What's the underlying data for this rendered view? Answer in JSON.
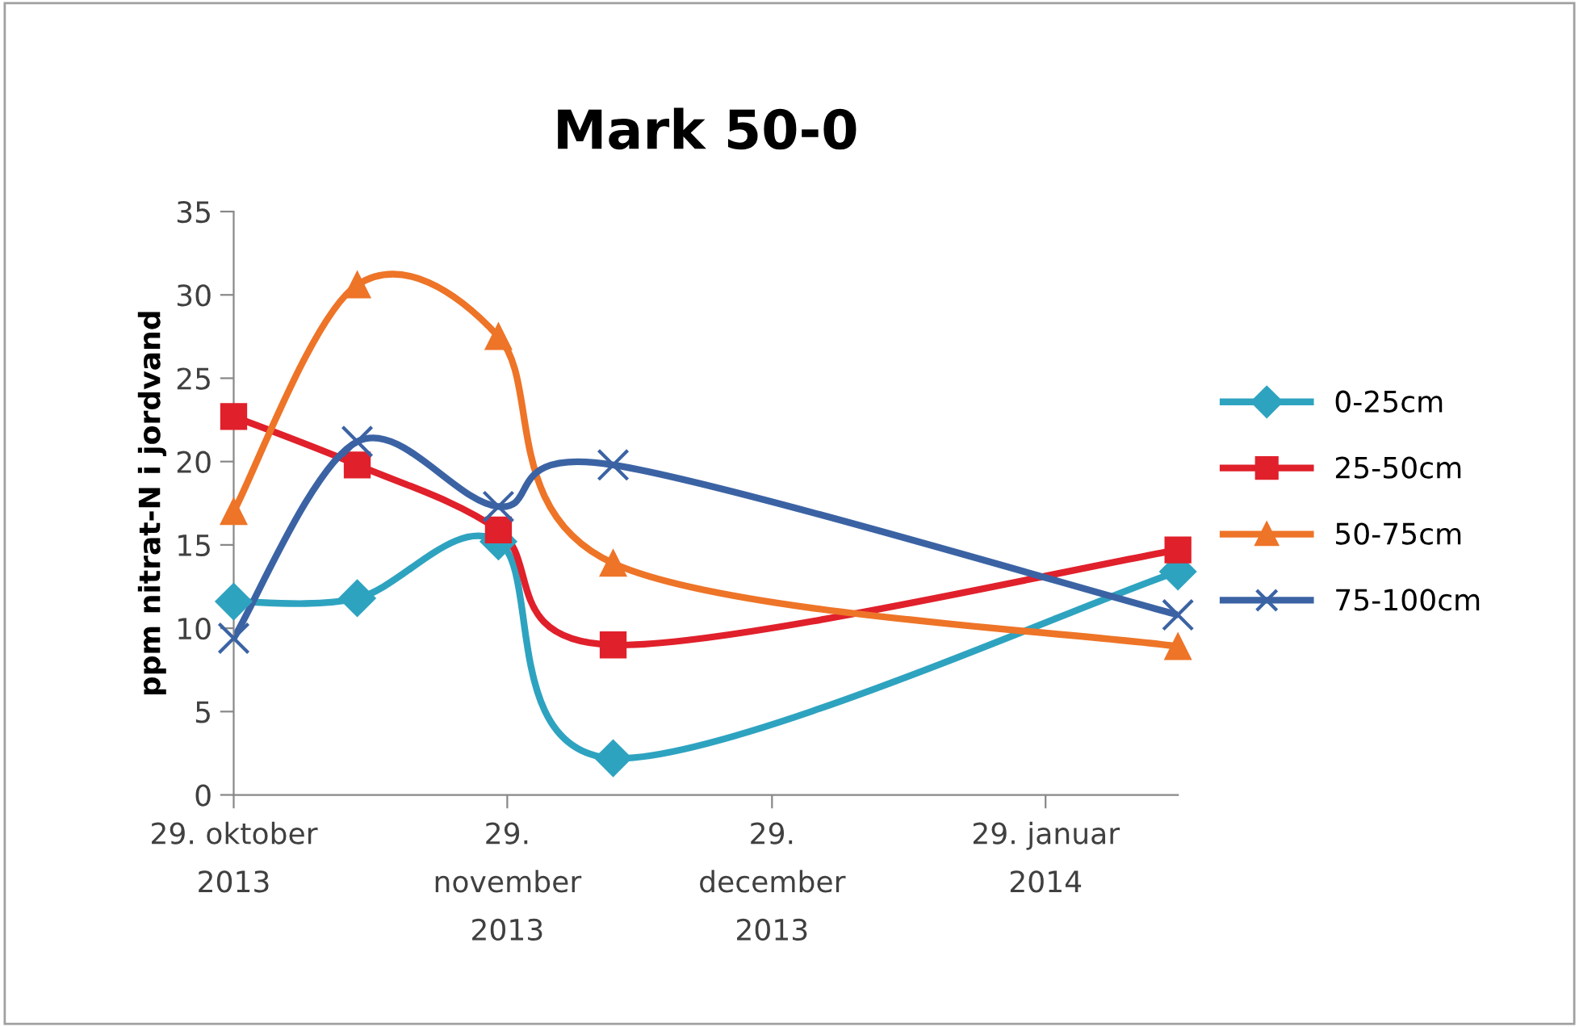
{
  "chart_data": {
    "type": "line",
    "title": "Mark 50-0",
    "ylabel": "ppm nitrat-N i jordvand",
    "x": [
      "2013-10-29",
      "2013-11-12",
      "2013-11-28",
      "2013-12-11",
      "2014-02-13"
    ],
    "series": [
      {
        "name": "0-25cm",
        "color": "#2ea3c0",
        "marker": "diamond",
        "values": [
          11.6,
          11.8,
          15.2,
          2.2,
          13.4
        ]
      },
      {
        "name": "25-50cm",
        "color": "#e0202b",
        "marker": "square",
        "values": [
          22.7,
          19.8,
          15.9,
          9.0,
          14.7
        ]
      },
      {
        "name": "50-75cm",
        "color": "#ee7428",
        "marker": "triangle",
        "values": [
          17.0,
          30.6,
          27.5,
          13.9,
          8.9
        ]
      },
      {
        "name": "75-100cm",
        "color": "#3b63a4",
        "marker": "cross",
        "values": [
          9.4,
          21.2,
          17.3,
          19.8,
          10.8
        ]
      }
    ],
    "xlim": [
      "2013-10-29",
      "2014-02-13"
    ],
    "xticks": [
      {
        "value": "2013-10-29",
        "label": "29. oktober\n2013"
      },
      {
        "value": "2013-11-29",
        "label": "29.\nnovember\n2013"
      },
      {
        "value": "2013-12-29",
        "label": "29.\ndecember\n2013"
      },
      {
        "value": "2014-01-29",
        "label": "29. januar\n2014"
      }
    ],
    "ylim": [
      0,
      35
    ],
    "yticks": [
      0,
      5,
      10,
      15,
      20,
      25,
      30,
      35
    ],
    "grid": false,
    "legend": "right",
    "line_style": "solid"
  }
}
